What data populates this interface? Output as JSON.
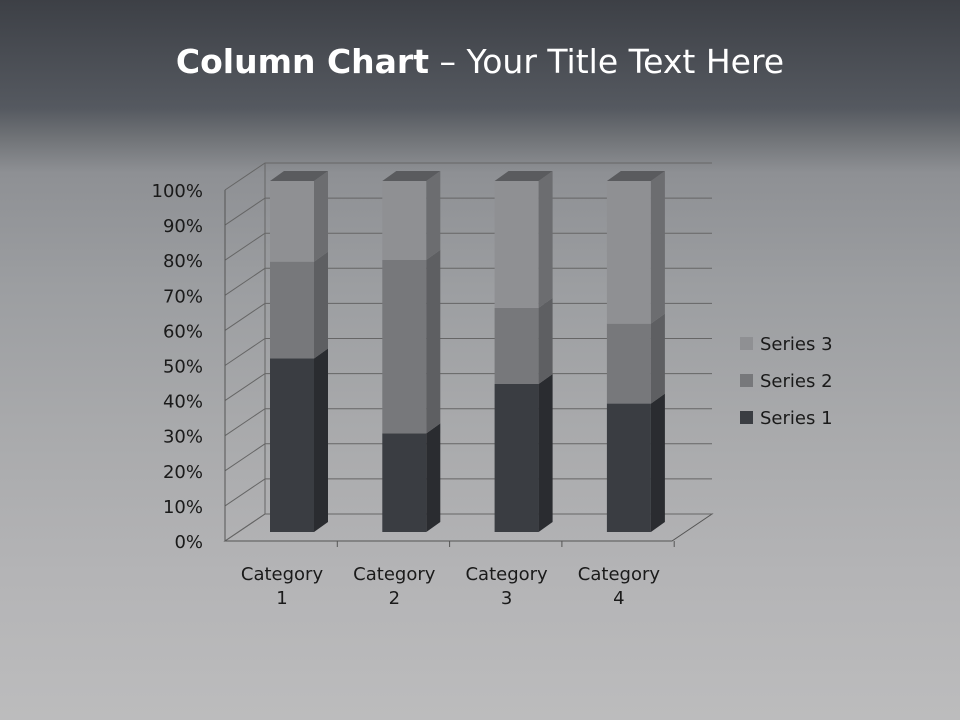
{
  "slide": {
    "title_bold": "Column Chart",
    "title_rest": " – Your Title Text Here"
  },
  "chart_data": {
    "type": "bar",
    "subtype": "3d-100%-stacked-column",
    "categories": [
      [
        "Category",
        "1"
      ],
      [
        "Category",
        "2"
      ],
      [
        "Category",
        "3"
      ],
      [
        "Category",
        "4"
      ]
    ],
    "series": [
      {
        "name": "Series 1",
        "values": [
          4.3,
          2.5,
          3.5,
          4.5
        ],
        "color": "#3a3d42",
        "side": "#2a2c30",
        "top": "#4a4d52"
      },
      {
        "name": "Series 2",
        "values": [
          2.4,
          4.4,
          1.8,
          2.8
        ],
        "color": "#77787b",
        "side": "#5e5f62",
        "top": "#86878a"
      },
      {
        "name": "Series 3",
        "values": [
          2,
          2,
          3,
          5
        ],
        "color": "#8f9093",
        "side": "#6c6d70",
        "top": "#5a5b5e"
      }
    ],
    "yticks": [
      "0%",
      "10%",
      "20%",
      "30%",
      "40%",
      "50%",
      "60%",
      "70%",
      "80%",
      "90%",
      "100%"
    ],
    "ylim": [
      0,
      100
    ],
    "grid": true,
    "legend": "right"
  }
}
